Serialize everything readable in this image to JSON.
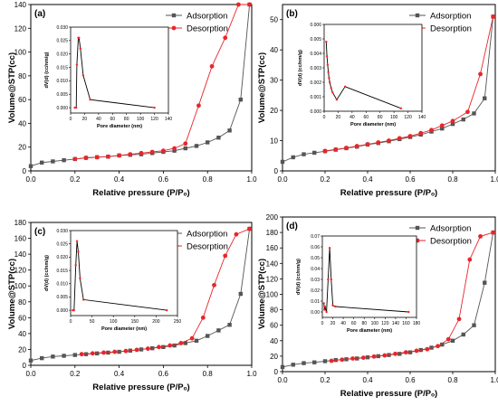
{
  "colors": {
    "adsorption": "#555555",
    "desorption": "#e8262a",
    "inset_line": "#000000",
    "inset_marker": "#ff2222"
  },
  "chart_data": [
    {
      "type": "line",
      "panel_label": "(a)",
      "xlabel": "Relative pressure (P/Pₒ)",
      "ylabel": "Volume@STP(cc)",
      "xlim": [
        0,
        1.0
      ],
      "ylim": [
        0,
        140
      ],
      "xticks": [
        "0.0",
        "0.2",
        "0.4",
        "0.6",
        "0.8",
        "1.0"
      ],
      "yticks": [
        "0",
        "20",
        "40",
        "60",
        "80",
        "100",
        "120",
        "140"
      ],
      "legend": "top-right",
      "series": [
        {
          "name": "Adsorption",
          "marker": "square",
          "x": [
            0.0,
            0.05,
            0.1,
            0.15,
            0.2,
            0.25,
            0.3,
            0.35,
            0.4,
            0.45,
            0.5,
            0.55,
            0.6,
            0.65,
            0.7,
            0.75,
            0.8,
            0.85,
            0.9,
            0.95,
            0.99
          ],
          "y": [
            4,
            7,
            8,
            9,
            10,
            11,
            11.5,
            12,
            13,
            13.5,
            14,
            15,
            16,
            17,
            19,
            21,
            24,
            28,
            34,
            60,
            140
          ]
        },
        {
          "name": "Desorption",
          "marker": "circle",
          "x": [
            0.99,
            0.94,
            0.88,
            0.82,
            0.76,
            0.7,
            0.65,
            0.6,
            0.55,
            0.5,
            0.45,
            0.4,
            0.35,
            0.3,
            0.25,
            0.2
          ],
          "y": [
            140,
            140,
            112,
            88,
            55,
            23,
            19,
            17,
            16,
            15,
            14,
            13,
            12,
            11.5,
            11,
            10
          ]
        }
      ],
      "inset": {
        "xlabel": "Pore diameter (nm)",
        "ylabel": "dV(d) (cc/nm/g)",
        "xlim": [
          0,
          140
        ],
        "ylim": [
          -0.002,
          0.03
        ],
        "xticks": [
          "0",
          "20",
          "40",
          "60",
          "80",
          "100",
          "120",
          "140"
        ],
        "yticks": [
          "0.000",
          "0.005",
          "0.010",
          "0.015",
          "0.020",
          "0.025",
          "0.030"
        ],
        "x": [
          6,
          8,
          9,
          11,
          12,
          14,
          18,
          28,
          120
        ],
        "y": [
          0.0,
          0.0,
          0.016,
          0.026,
          0.026,
          0.022,
          0.012,
          0.003,
          0.0
        ]
      }
    },
    {
      "type": "line",
      "panel_label": "(b)",
      "xlabel": "Relative pressure (P/Pₒ)",
      "ylabel": "Volume@STP(cc)",
      "xlim": [
        0,
        1.0
      ],
      "ylim": [
        0,
        55
      ],
      "xticks": [
        "0.0",
        "0.2",
        "0.4",
        "0.6",
        "0.8",
        "1.0"
      ],
      "yticks": [
        "0",
        "10",
        "20",
        "30",
        "40",
        "50"
      ],
      "legend": "top-right",
      "series": [
        {
          "name": "Adsorption",
          "marker": "square",
          "x": [
            0.0,
            0.05,
            0.1,
            0.15,
            0.2,
            0.25,
            0.3,
            0.35,
            0.4,
            0.45,
            0.5,
            0.55,
            0.6,
            0.65,
            0.7,
            0.75,
            0.8,
            0.85,
            0.9,
            0.95,
            0.99
          ],
          "y": [
            3,
            4.5,
            5.5,
            6,
            6.5,
            7,
            7.5,
            8,
            8.7,
            9.2,
            9.8,
            10.5,
            11.2,
            12,
            13,
            14,
            15.5,
            17,
            19,
            24,
            51
          ]
        },
        {
          "name": "Desorption",
          "marker": "circle",
          "x": [
            0.99,
            0.93,
            0.87,
            0.8,
            0.75,
            0.7,
            0.65,
            0.6,
            0.55,
            0.5,
            0.45,
            0.4,
            0.35,
            0.3,
            0.25,
            0.2
          ],
          "y": [
            51,
            32,
            19.5,
            16.5,
            15,
            13.5,
            12.5,
            11.5,
            10.8,
            10,
            9.4,
            8.8,
            8.2,
            7.6,
            7.1,
            6.6
          ]
        }
      ],
      "inset": {
        "xlabel": "Pore diameter (nm)",
        "ylabel": "dV(d) (cc/nm/g)",
        "xlim": [
          0,
          140
        ],
        "ylim": [
          0,
          0.006
        ],
        "xticks": [
          "0",
          "20",
          "40",
          "60",
          "80",
          "100",
          "120",
          "140"
        ],
        "yticks": [
          "0.000",
          "0.001",
          "0.002",
          "0.003",
          "0.004",
          "0.005",
          "0.006"
        ],
        "x": [
          3,
          4,
          5,
          6,
          7,
          8,
          10,
          12,
          18,
          30,
          110
        ],
        "y": [
          0.0048,
          0.0038,
          0.0032,
          0.0027,
          0.0023,
          0.002,
          0.0016,
          0.0013,
          0.0008,
          0.0017,
          0.0002
        ]
      }
    },
    {
      "type": "line",
      "panel_label": "(c)",
      "xlabel": "Relative pressure (P/Pₒ)",
      "ylabel": "Volume@STP(cc)",
      "xlim": [
        0,
        1.0
      ],
      "ylim": [
        0,
        180
      ],
      "xticks": [
        "0.0",
        "0.2",
        "0.4",
        "0.6",
        "0.8",
        "1.0"
      ],
      "yticks": [
        "0",
        "20",
        "40",
        "60",
        "80",
        "100",
        "120",
        "140",
        "160",
        "180"
      ],
      "legend": "top-right",
      "series": [
        {
          "name": "Adsorption",
          "marker": "square",
          "x": [
            0.0,
            0.05,
            0.1,
            0.15,
            0.2,
            0.25,
            0.3,
            0.35,
            0.4,
            0.45,
            0.5,
            0.55,
            0.6,
            0.65,
            0.7,
            0.75,
            0.8,
            0.85,
            0.9,
            0.95,
            0.99
          ],
          "y": [
            6,
            9,
            11,
            12,
            13,
            14,
            15,
            16,
            17,
            18.5,
            20,
            21.5,
            23,
            25,
            28,
            31,
            37,
            44,
            51,
            90,
            172
          ]
        },
        {
          "name": "Desorption",
          "marker": "circle",
          "x": [
            0.99,
            0.93,
            0.88,
            0.83,
            0.78,
            0.73,
            0.68,
            0.63,
            0.58,
            0.53,
            0.48,
            0.43,
            0.38,
            0.33,
            0.28,
            0.23
          ],
          "y": [
            172,
            165,
            138,
            101,
            60,
            34,
            28,
            25,
            23,
            21,
            19.5,
            18,
            17,
            16,
            15,
            14
          ]
        }
      ],
      "inset": {
        "xlabel": "Pore diameter (nm)",
        "ylabel": "dV(d) (cc/nm/g)",
        "xlim": [
          0,
          250
        ],
        "ylim": [
          -0.002,
          0.03
        ],
        "xticks": [
          "0",
          "50",
          "100",
          "150",
          "200",
          "250"
        ],
        "yticks": [
          "0.000",
          "0.005",
          "0.010",
          "0.015",
          "0.020",
          "0.025",
          "0.030"
        ],
        "x": [
          5,
          8,
          12,
          15,
          18,
          22,
          30,
          225
        ],
        "y": [
          0.0,
          0.0,
          0.017,
          0.026,
          0.022,
          0.012,
          0.004,
          0.0
        ]
      }
    },
    {
      "type": "line",
      "panel_label": "(d)",
      "xlabel": "Relative pressure (P/Pₒ)",
      "ylabel": "Volume@STP(cc)",
      "xlim": [
        0,
        1.0
      ],
      "ylim": [
        0,
        200
      ],
      "xticks": [
        "0.0",
        "0.2",
        "0.4",
        "0.6",
        "0.8",
        "1.0"
      ],
      "yticks": [
        "0",
        "20",
        "40",
        "60",
        "80",
        "100",
        "120",
        "140",
        "160",
        "180",
        "200"
      ],
      "legend": "top-right",
      "series": [
        {
          "name": "Adsorption",
          "marker": "square",
          "x": [
            0.0,
            0.05,
            0.1,
            0.15,
            0.2,
            0.25,
            0.3,
            0.35,
            0.4,
            0.45,
            0.5,
            0.55,
            0.6,
            0.65,
            0.7,
            0.75,
            0.8,
            0.85,
            0.9,
            0.95,
            0.99
          ],
          "y": [
            6,
            9,
            11,
            12,
            13.5,
            15,
            16,
            17,
            18.5,
            20,
            21.5,
            23,
            25,
            28,
            31,
            35,
            40,
            48,
            60,
            115,
            180
          ]
        },
        {
          "name": "Desorption",
          "marker": "circle",
          "x": [
            0.99,
            0.93,
            0.88,
            0.83,
            0.78,
            0.73,
            0.68,
            0.63,
            0.58,
            0.53,
            0.48,
            0.43,
            0.38,
            0.33,
            0.28,
            0.23
          ],
          "y": [
            180,
            175,
            145,
            68,
            42,
            33,
            29,
            27,
            25,
            23,
            21,
            19.5,
            18,
            17,
            15.5,
            14
          ]
        }
      ],
      "inset": {
        "xlabel": "Pore diameter (nm)",
        "ylabel": "dV(d) (cc/nm/g)",
        "xlim": [
          0,
          180
        ],
        "ylim": [
          -0.005,
          0.07
        ],
        "xticks": [
          "0",
          "20",
          "40",
          "60",
          "80",
          "100",
          "120",
          "140",
          "160",
          "180"
        ],
        "yticks": [
          "0.00",
          "0.01",
          "0.02",
          "0.03",
          "0.04",
          "0.05",
          "0.06",
          "0.07"
        ],
        "x": [
          3,
          4,
          5,
          8,
          11,
          14,
          17,
          20,
          25,
          165
        ],
        "y": [
          0.008,
          0.002,
          0.005,
          0.0,
          0.03,
          0.059,
          0.03,
          0.006,
          0.005,
          0.0
        ]
      }
    }
  ]
}
